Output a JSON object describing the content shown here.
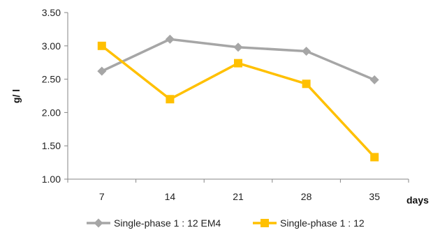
{
  "chart_data": {
    "type": "line",
    "title": "",
    "xlabel": "days",
    "ylabel": "g/ l",
    "categories": [
      "7",
      "14",
      "21",
      "28",
      "35"
    ],
    "y_ticks": [
      "1.00",
      "1.50",
      "2.00",
      "2.50",
      "3.00",
      "3.50"
    ],
    "ylim": [
      1.0,
      3.5
    ],
    "grid": false,
    "legend_position": "bottom",
    "series": [
      {
        "name": "Single-phase 1 : 12 EM4",
        "values": [
          2.62,
          3.1,
          2.98,
          2.92,
          2.49
        ],
        "color": "#A6A6A6",
        "marker": "diamond"
      },
      {
        "name": "Single-phase 1 : 12",
        "values": [
          3.0,
          2.2,
          2.74,
          2.43,
          1.33
        ],
        "color": "#FFC000",
        "marker": "square"
      }
    ]
  }
}
